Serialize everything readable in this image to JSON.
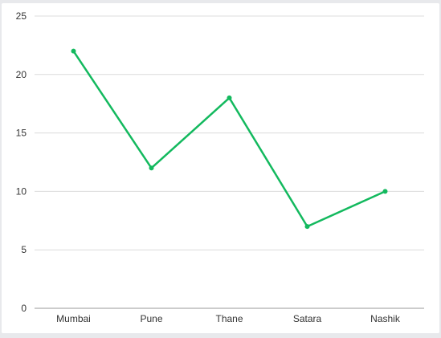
{
  "chart_data": {
    "type": "line",
    "categories": [
      "Mumbai",
      "Pune",
      "Thane",
      "Satara",
      "Nashik"
    ],
    "series": [
      {
        "values": [
          22,
          12,
          18,
          7,
          10
        ]
      }
    ],
    "ylim": [
      0,
      25
    ],
    "yticks": [
      "0",
      "5",
      "10",
      "15",
      "20",
      "25"
    ],
    "grid": true,
    "legend": "none",
    "colors": {
      "line": "#13b95e",
      "grid": "#dcdcdc",
      "axis": "#999999"
    }
  }
}
